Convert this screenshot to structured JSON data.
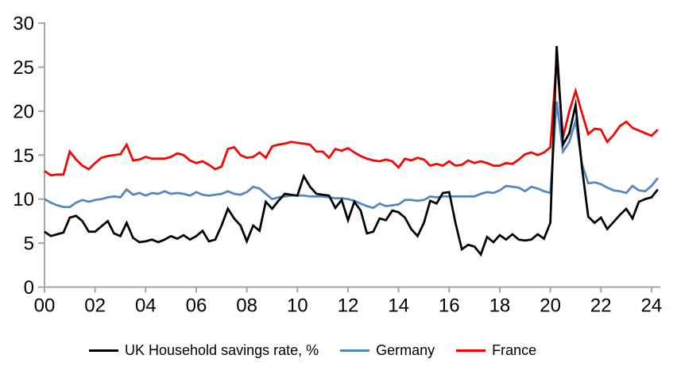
{
  "chart_data": {
    "type": "line",
    "title": "",
    "x_start_year": 2000,
    "x_step_years": 0.25,
    "x_axis": {
      "tick_labels": [
        "00",
        "02",
        "04",
        "06",
        "08",
        "10",
        "12",
        "14",
        "16",
        "18",
        "20",
        "22",
        "24"
      ],
      "tick_years": [
        2000,
        2002,
        2004,
        2006,
        2008,
        2010,
        2012,
        2014,
        2016,
        2018,
        2020,
        2022,
        2024
      ]
    },
    "y_axis": {
      "ticks": [
        0,
        5,
        10,
        15,
        20,
        25,
        30
      ],
      "range": [
        0,
        30
      ]
    },
    "grid": "off",
    "legend_position": "bottom",
    "axis_color": "#A6A6A6",
    "series": [
      {
        "key": "uk",
        "name": "UK Household savings rate, %",
        "color": "#000000",
        "values": [
          6.3,
          5.8,
          6.0,
          6.2,
          7.9,
          8.1,
          7.5,
          6.3,
          6.3,
          6.9,
          7.5,
          6.1,
          5.8,
          7.3,
          5.6,
          5.1,
          5.2,
          5.4,
          5.1,
          5.4,
          5.8,
          5.5,
          5.9,
          5.4,
          5.8,
          6.4,
          5.2,
          5.4,
          7.0,
          8.9,
          7.8,
          7.0,
          5.2,
          7.0,
          6.4,
          9.7,
          8.9,
          9.8,
          10.6,
          10.5,
          10.4,
          12.6,
          11.4,
          10.6,
          10.5,
          10.4,
          9.0,
          9.9,
          7.6,
          9.7,
          8.7,
          6.1,
          6.3,
          7.8,
          7.6,
          8.7,
          8.5,
          7.9,
          6.6,
          5.8,
          7.3,
          9.8,
          9.5,
          10.7,
          10.8,
          7.3,
          4.3,
          4.8,
          4.6,
          3.7,
          5.7,
          5.1,
          5.9,
          5.4,
          6.0,
          5.4,
          5.3,
          5.4,
          6.0,
          5.5,
          7.3,
          27.4,
          16.2,
          17.5,
          20.7,
          13.6,
          8.0,
          7.3,
          7.9,
          6.6,
          7.4,
          8.2,
          8.9,
          7.8,
          9.7,
          10.0,
          10.2,
          11.1
        ]
      },
      {
        "key": "germany",
        "name": "Germany",
        "color": "#5586C2",
        "values": [
          10.0,
          9.6,
          9.3,
          9.1,
          9.1,
          9.6,
          9.9,
          9.7,
          9.9,
          10.0,
          10.2,
          10.3,
          10.2,
          11.1,
          10.5,
          10.7,
          10.4,
          10.7,
          10.6,
          10.9,
          10.6,
          10.7,
          10.6,
          10.4,
          10.8,
          10.5,
          10.4,
          10.5,
          10.6,
          10.9,
          10.6,
          10.5,
          10.8,
          11.4,
          11.2,
          10.6,
          10.0,
          10.2,
          10.3,
          10.4,
          10.4,
          10.4,
          10.3,
          10.3,
          10.3,
          10.2,
          10.1,
          10.1,
          10.0,
          9.8,
          9.5,
          9.2,
          9.0,
          9.5,
          9.2,
          9.3,
          9.4,
          9.9,
          9.9,
          9.8,
          9.9,
          10.3,
          10.2,
          10.3,
          10.3,
          10.3,
          10.3,
          10.3,
          10.3,
          10.6,
          10.8,
          10.7,
          11.0,
          11.5,
          11.4,
          11.3,
          10.9,
          11.4,
          11.2,
          10.9,
          10.7,
          21.1,
          15.4,
          16.5,
          18.9,
          14.0,
          11.8,
          11.9,
          11.7,
          11.3,
          11.0,
          10.9,
          10.7,
          11.5,
          11.0,
          10.9,
          11.5,
          12.4
        ]
      },
      {
        "key": "france",
        "name": "France",
        "color": "#FF0000",
        "values": [
          13.2,
          12.7,
          12.8,
          12.8,
          15.4,
          14.5,
          13.8,
          13.4,
          14.1,
          14.7,
          14.9,
          15.0,
          15.1,
          16.2,
          14.4,
          14.5,
          14.8,
          14.6,
          14.6,
          14.6,
          14.8,
          15.2,
          15.0,
          14.4,
          14.1,
          14.3,
          13.9,
          13.4,
          13.7,
          15.7,
          15.9,
          15.0,
          14.7,
          14.8,
          15.3,
          14.7,
          16.0,
          16.2,
          16.3,
          16.5,
          16.4,
          16.3,
          16.2,
          15.4,
          15.4,
          14.7,
          15.7,
          15.5,
          15.8,
          15.3,
          14.9,
          14.6,
          14.4,
          14.3,
          14.5,
          14.3,
          13.6,
          14.6,
          14.4,
          14.7,
          14.5,
          13.8,
          14.0,
          13.8,
          14.3,
          13.8,
          13.9,
          14.4,
          14.1,
          14.3,
          14.1,
          13.8,
          13.8,
          14.1,
          14.0,
          14.5,
          15.1,
          15.3,
          15.0,
          15.3,
          15.9,
          26.0,
          17.0,
          20.0,
          22.3,
          19.8,
          17.4,
          18.0,
          17.9,
          16.5,
          17.3,
          18.3,
          18.8,
          18.1,
          17.8,
          17.5,
          17.2,
          17.9
        ]
      }
    ]
  }
}
